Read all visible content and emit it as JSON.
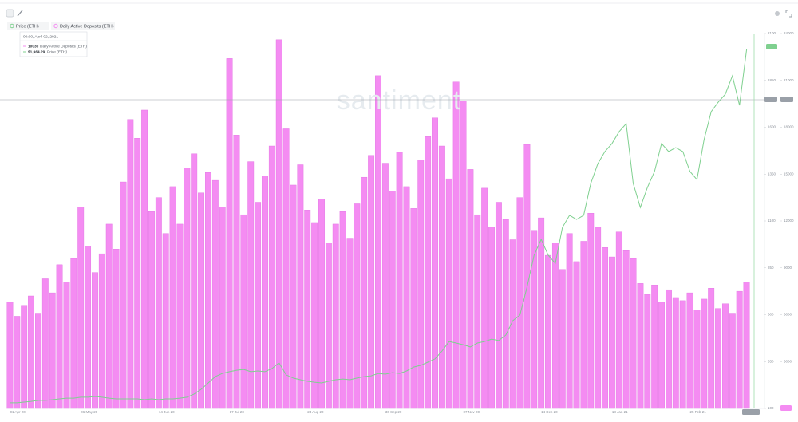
{
  "chart_data": {
    "type": "bar",
    "categories": [
      "01 Apr 20",
      null,
      null,
      null,
      null,
      null,
      null,
      null,
      null,
      null,
      "06 May 20",
      null,
      null,
      null,
      null,
      null,
      null,
      null,
      null,
      null,
      null,
      "14 Jun 20",
      null,
      null,
      null,
      null,
      null,
      null,
      null,
      null,
      null,
      "17 Jul 20",
      null,
      null,
      null,
      null,
      null,
      null,
      null,
      null,
      null,
      null,
      "24 Aug 20",
      null,
      null,
      null,
      null,
      null,
      null,
      null,
      null,
      null,
      null,
      "30 Sep 20",
      null,
      null,
      null,
      null,
      null,
      null,
      null,
      null,
      null,
      null,
      "07 Nov 20",
      null,
      null,
      null,
      null,
      null,
      null,
      null,
      null,
      null,
      null,
      "14 Dec 20",
      null,
      null,
      null,
      null,
      null,
      null,
      null,
      null,
      null,
      "18 Jan 21",
      null,
      null,
      null,
      null,
      null,
      null,
      null,
      null,
      null,
      null,
      "25 Feb 21",
      null,
      null,
      null,
      null,
      null,
      null,
      null,
      null
    ],
    "series": [
      {
        "name": "Price (ETH)",
        "type": "line",
        "axis": "y2",
        "color": "#7fd08f",
        "values": [
          130,
          130,
          134,
          138,
          143,
          143,
          147,
          151,
          155,
          155,
          160,
          160,
          164,
          160,
          155,
          151,
          151,
          151,
          151,
          147,
          151,
          147,
          151,
          151,
          155,
          160,
          177,
          202,
          236,
          270,
          287,
          296,
          304,
          308,
          296,
          300,
          296,
          313,
          343,
          279,
          262,
          253,
          245,
          240,
          236,
          245,
          253,
          257,
          253,
          262,
          270,
          274,
          287,
          283,
          291,
          287,
          300,
          321,
          330,
          347,
          364,
          406,
          457,
          449,
          440,
          428,
          449,
          457,
          470,
          462,
          491,
          568,
          598,
          747,
          917,
          1002,
          917,
          874,
          1066,
          1130,
          1108,
          1130,
          1300,
          1406,
          1470,
          1513,
          1576,
          1619,
          1300,
          1172,
          1279,
          1364,
          1513,
          1470,
          1491,
          1470,
          1364,
          1321,
          1534,
          1683,
          1734,
          1776,
          1874,
          1717,
          2015
        ]
      },
      {
        "name": "Daily Active Deposits (ETH)",
        "type": "bar",
        "color": "#f48cf2",
        "values": [
          6800,
          5900,
          6600,
          7200,
          6100,
          8300,
          7400,
          9200,
          8100,
          9600,
          12900,
          10400,
          8700,
          9900,
          11800,
          10200,
          14500,
          18500,
          17300,
          19100,
          12600,
          13500,
          11200,
          14200,
          11800,
          15400,
          16300,
          13800,
          15100,
          14600,
          12900,
          22400,
          17500,
          12400,
          15800,
          13200,
          14900,
          16800,
          23600,
          17900,
          14300,
          15600,
          12700,
          11900,
          13400,
          10600,
          11800,
          12600,
          10900,
          13100,
          14800,
          16200,
          21300,
          15700,
          13900,
          16400,
          14200,
          12800,
          15900,
          17400,
          18600,
          16800,
          14700,
          20900,
          19700,
          15300,
          12400,
          14100,
          11600,
          13200,
          12100,
          10800,
          13500,
          16900,
          11400,
          12200,
          9800,
          10600,
          8900,
          11200,
          9400,
          10700,
          12500,
          11600,
          10300,
          9700,
          11300,
          10100,
          9600,
          8000,
          7300,
          7900,
          6800,
          7600,
          7100,
          6900,
          7400,
          6300,
          7000,
          7700,
          6400,
          6700,
          6100,
          7500,
          8100
        ]
      }
    ],
    "ylim": [
      0,
      24000
    ],
    "yticks": [
      0,
      3000,
      6000,
      9000,
      12000,
      15000,
      18000,
      21000,
      24000
    ],
    "y2lim": [
      100,
      2100
    ],
    "y2ticks": [
      100,
      350,
      600,
      850,
      1100,
      1350,
      1600,
      1850,
      2100
    ]
  },
  "tooltip": {
    "date": "00:00, April 02, 2021",
    "rows": [
      {
        "value": "10030",
        "label": "Daily Active Deposits (ETH)"
      },
      {
        "value": "$1,964.29",
        "label": "Price (ETH)"
      }
    ]
  },
  "watermark": "santiment"
}
